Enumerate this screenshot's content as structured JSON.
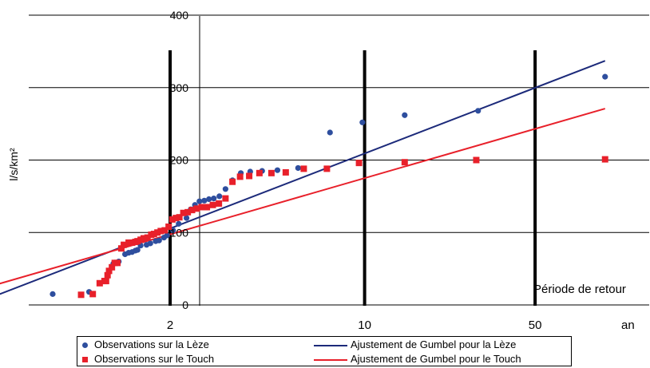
{
  "chart_data": {
    "type": "scatter",
    "title": "",
    "xlabel": "Période de retour",
    "xunit": "an",
    "ylabel": "l/s/km²",
    "x_scale": "gumbel-return-period",
    "ylim": [
      0,
      400
    ],
    "yticks": [
      0,
      100,
      200,
      300,
      400
    ],
    "xticks": [
      2,
      10,
      50
    ],
    "xrange": [
      1.07,
      150
    ],
    "grid": "horizontal",
    "vertical_markers": [
      2,
      10,
      50
    ],
    "legend_position": "bottom",
    "colors": {
      "leze": "#2e4e9e",
      "touch": "#e8202a",
      "leze_fit": "#1c2a7a",
      "touch_fit": "#e8202a",
      "axis": "#000000"
    },
    "series": [
      {
        "name": "Observations sur la Lèze",
        "kind": "points",
        "marker": "circle",
        "color": "#2e4e9e",
        "x": [
          1.13,
          1.28,
          1.43,
          1.47,
          1.52,
          1.55,
          1.58,
          1.61,
          1.63,
          1.66,
          1.72,
          1.76,
          1.82,
          1.86,
          1.92,
          1.96,
          2.04,
          2.12,
          2.24,
          2.31,
          2.38,
          2.46,
          2.55,
          2.64,
          2.74,
          2.86,
          3.0,
          3.17,
          3.39,
          3.66,
          4.04,
          4.6,
          5.5,
          7.3,
          9.8,
          14.5,
          29.0,
          98.0
        ],
        "y": [
          15,
          18,
          57,
          60,
          70,
          72,
          73,
          75,
          76,
          82,
          83,
          85,
          88,
          89,
          93,
          96,
          103,
          112,
          120,
          132,
          138,
          143,
          144,
          146,
          147,
          150,
          160,
          172,
          182,
          184,
          185,
          186,
          189,
          238,
          252,
          262,
          268,
          315
        ]
      },
      {
        "name": "Observations sur le Touch",
        "kind": "points",
        "marker": "square",
        "color": "#e8202a",
        "x": [
          1.0134,
          1.24,
          1.3,
          1.34,
          1.37,
          1.38,
          1.39,
          1.4,
          1.42,
          1.44,
          1.46,
          1.49,
          1.51,
          1.55,
          1.58,
          1.61,
          1.63,
          1.66,
          1.69,
          1.73,
          1.77,
          1.8,
          1.84,
          1.88,
          1.93,
          1.98,
          2.03,
          2.08,
          2.13,
          2.19,
          2.26,
          2.33,
          2.41,
          2.5,
          2.6,
          2.72,
          2.85,
          3.0,
          3.17,
          3.37,
          3.63,
          3.95,
          4.37,
          4.94,
          5.78,
          7.1,
          9.5,
          14.5,
          28.5,
          98.0
        ],
        "y": [
          13,
          14,
          15,
          30,
          33,
          33,
          41,
          47,
          52,
          58,
          58,
          78,
          83,
          86,
          86,
          87,
          88,
          90,
          92,
          93,
          97,
          98,
          100,
          102,
          103,
          108,
          118,
          120,
          121,
          127,
          128,
          131,
          133,
          135,
          135,
          138,
          140,
          147,
          170,
          177,
          178,
          182,
          182,
          183,
          188,
          188,
          196,
          197,
          200,
          201
        ]
      },
      {
        "name": "Ajustement de Gumbel pour la Lèze",
        "kind": "line",
        "color": "#1c2a7a",
        "x": [
          1.0134,
          98.0
        ],
        "y": [
          5,
          337
        ]
      },
      {
        "name": "Ajustement de Gumbel pour le Touch",
        "kind": "line",
        "color": "#e8202a",
        "x": [
          1.0134,
          98.0
        ],
        "y": [
          22,
          271
        ]
      }
    ]
  }
}
